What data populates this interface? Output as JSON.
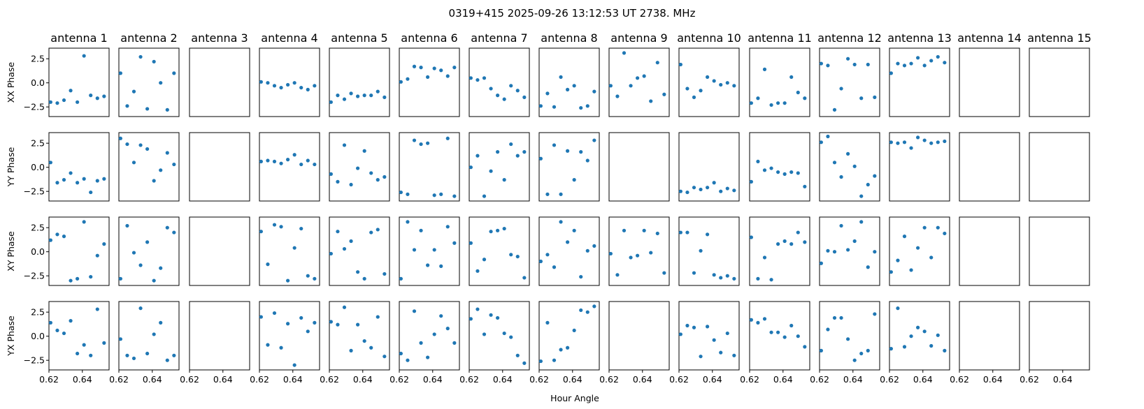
{
  "chart_data": {
    "type": "scatter",
    "title": "0319+415  2025-09-26 13:12:53 UT  2738. MHz",
    "xlabel": "Hour Angle",
    "antennas": [
      "antenna 1",
      "antenna 2",
      "antenna 3",
      "antenna 4",
      "antenna 5",
      "antenna 6",
      "antenna 7",
      "antenna 8",
      "antenna 9",
      "antenna 10",
      "antenna 11",
      "antenna 12",
      "antenna 13",
      "antenna 14",
      "antenna 15"
    ],
    "rows": [
      "XX Phase",
      "YY Phase",
      "XY Phase",
      "YX Phase"
    ],
    "xlim": [
      0.62,
      0.656
    ],
    "ylim": [
      -3.5,
      3.6
    ],
    "xticks": [
      0.62,
      0.64
    ],
    "xtick_labels": [
      "0.62",
      "0.64"
    ],
    "yticks": [
      2.5,
      0.0,
      -2.5
    ],
    "ytick_labels": [
      "2.5",
      "0.0",
      "−2.5"
    ],
    "x": [
      0.621,
      0.625,
      0.629,
      0.633,
      0.637,
      0.641,
      0.645,
      0.649,
      0.653
    ],
    "marker_color": "#1f77b4",
    "panels": [
      [
        [
          -2.0,
          -2.1,
          -1.8,
          -0.8,
          -2.0,
          2.8,
          -1.3,
          -1.6,
          -1.4
        ],
        [
          1.0,
          -2.4,
          -0.9,
          2.7,
          -2.7,
          2.2,
          0.0,
          -2.8,
          1.0
        ],
        [],
        [
          0.1,
          0.0,
          -0.3,
          -0.5,
          -0.2,
          0.0,
          -0.5,
          -0.7,
          -0.3
        ],
        [
          -2.0,
          -1.3,
          -1.7,
          -1.1,
          -1.4,
          -1.3,
          -1.3,
          -0.9,
          -1.5
        ],
        [
          0.1,
          0.4,
          1.7,
          1.6,
          0.6,
          1.5,
          1.3,
          0.7,
          1.6
        ],
        [
          0.5,
          0.3,
          0.5,
          -0.6,
          -1.3,
          -1.7,
          -0.3,
          -0.8,
          -1.5
        ],
        [
          -2.4,
          -1.1,
          -2.5,
          0.6,
          -0.7,
          -0.3,
          -2.6,
          -2.4,
          -0.9
        ],
        [
          -0.3,
          -1.4,
          3.1,
          -0.3,
          0.5,
          0.7,
          -1.9,
          2.1,
          -1.2
        ],
        [
          1.9,
          -0.6,
          -1.5,
          -0.8,
          0.6,
          0.2,
          -0.2,
          0.0,
          -0.3
        ],
        [
          -2.1,
          -1.6,
          1.4,
          -2.3,
          -2.1,
          -2.1,
          0.6,
          -1.0,
          -1.6
        ],
        [
          2.0,
          1.8,
          -2.8,
          -0.6,
          2.5,
          1.9,
          -1.6,
          1.9,
          -1.5
        ],
        [
          1.0,
          2.0,
          1.8,
          2.0,
          2.6,
          1.8,
          2.3,
          2.7,
          2.1
        ],
        [],
        []
      ],
      [
        [
          0.5,
          -1.6,
          -1.3,
          -0.6,
          -1.6,
          -1.2,
          -2.6,
          -1.4,
          -1.2
        ],
        [
          3.0,
          2.4,
          0.5,
          2.3,
          1.9,
          -1.4,
          -0.3,
          1.5,
          0.3
        ],
        [],
        [
          0.6,
          0.7,
          0.6,
          0.4,
          0.8,
          1.3,
          0.3,
          0.7,
          0.3
        ],
        [
          -0.7,
          -1.5,
          2.3,
          -1.8,
          -0.1,
          1.7,
          -0.6,
          -1.3,
          -1.0
        ],
        [
          -2.6,
          -2.8,
          2.8,
          2.4,
          2.5,
          -2.9,
          -2.8,
          3.0,
          -3.0
        ],
        [
          0.0,
          1.2,
          -3.0,
          -0.4,
          1.6,
          -1.3,
          2.4,
          1.2,
          1.6
        ],
        [
          0.9,
          -2.8,
          2.3,
          -2.8,
          1.7,
          -1.3,
          1.6,
          0.7,
          2.8
        ],
        [],
        [
          -2.5,
          -2.6,
          -2.1,
          -2.3,
          -2.1,
          -1.6,
          -2.5,
          -2.2,
          -2.4
        ],
        [
          -1.5,
          0.6,
          -0.3,
          -0.1,
          -0.5,
          -0.7,
          -0.5,
          -0.6,
          -2.0
        ],
        [
          2.6,
          3.2,
          0.5,
          -1.0,
          1.4,
          0.1,
          -3.0,
          -1.8,
          -0.9
        ],
        [
          2.6,
          2.5,
          2.6,
          2.0,
          3.1,
          2.8,
          2.5,
          2.6,
          2.7
        ],
        [],
        []
      ],
      [
        [
          1.2,
          1.8,
          1.6,
          -3.0,
          -2.8,
          3.1,
          -2.6,
          -0.4,
          0.8
        ],
        [
          -2.8,
          2.7,
          -0.1,
          -1.4,
          1.0,
          -3.0,
          -1.7,
          2.5,
          2.0
        ],
        [],
        [
          2.1,
          -1.3,
          2.8,
          2.6,
          -3.0,
          0.4,
          2.4,
          -2.5,
          -2.8
        ],
        [
          -0.2,
          2.1,
          0.3,
          1.1,
          -2.1,
          -2.8,
          2.0,
          2.3,
          -2.3
        ],
        [
          -2.8,
          3.1,
          0.2,
          2.2,
          -1.4,
          0.2,
          -1.5,
          2.6,
          0.9
        ],
        [
          0.9,
          -2.0,
          -0.8,
          2.1,
          2.2,
          2.4,
          -0.3,
          -0.5,
          -2.7
        ],
        [
          -1.0,
          -0.3,
          -1.6,
          3.1,
          1.0,
          2.2,
          -2.6,
          0.1,
          0.6
        ],
        [
          -0.2,
          -2.4,
          2.2,
          -0.6,
          -0.4,
          2.2,
          -0.1,
          1.9,
          -2.2
        ],
        [
          2.0,
          2.0,
          -2.2,
          0.1,
          1.8,
          -2.4,
          -2.7,
          -2.5,
          -2.8
        ],
        [
          1.5,
          -2.8,
          -0.6,
          -2.9,
          0.8,
          1.1,
          0.8,
          2.0,
          1.0
        ],
        [
          -1.2,
          0.1,
          0.0,
          2.7,
          0.2,
          1.1,
          3.1,
          -1.6,
          0.0
        ],
        [
          -2.1,
          -0.9,
          1.6,
          -1.9,
          0.4,
          2.5,
          -0.6,
          2.5,
          1.9
        ],
        [],
        []
      ],
      [
        [
          1.4,
          0.6,
          0.3,
          1.6,
          -1.8,
          -0.9,
          -2.0,
          2.8,
          -0.7
        ],
        [
          -0.3,
          -2.0,
          -2.3,
          2.9,
          -1.8,
          0.2,
          1.4,
          -2.5,
          -2.0
        ],
        [],
        [
          2.0,
          -0.9,
          2.4,
          -1.2,
          1.3,
          -3.0,
          1.9,
          0.5,
          1.4
        ],
        [
          1.5,
          1.2,
          3.0,
          -1.5,
          1.2,
          -0.5,
          -1.2,
          2.0,
          -2.1
        ],
        [
          -1.8,
          -2.5,
          2.6,
          -0.7,
          -2.2,
          0.2,
          2.1,
          0.8,
          -0.7
        ],
        [
          1.8,
          2.8,
          0.2,
          2.2,
          1.9,
          0.3,
          -0.1,
          -2.0,
          -2.8
        ],
        [
          -2.6,
          1.4,
          -2.5,
          -1.4,
          -1.2,
          0.6,
          2.7,
          2.5,
          3.1
        ],
        [],
        [
          0.2,
          1.1,
          0.9,
          -2.1,
          1.0,
          -0.4,
          -1.7,
          0.3,
          -2.0
        ],
        [
          1.7,
          1.4,
          1.8,
          0.4,
          0.4,
          -0.1,
          1.1,
          0.0,
          -1.1
        ],
        [
          -1.5,
          0.7,
          1.9,
          1.9,
          -0.3,
          -2.5,
          -1.8,
          -1.5,
          2.3
        ],
        [
          -1.3,
          2.9,
          -1.1,
          0.0,
          0.9,
          0.5,
          -1.0,
          0.1,
          -1.5
        ],
        [],
        []
      ]
    ]
  }
}
